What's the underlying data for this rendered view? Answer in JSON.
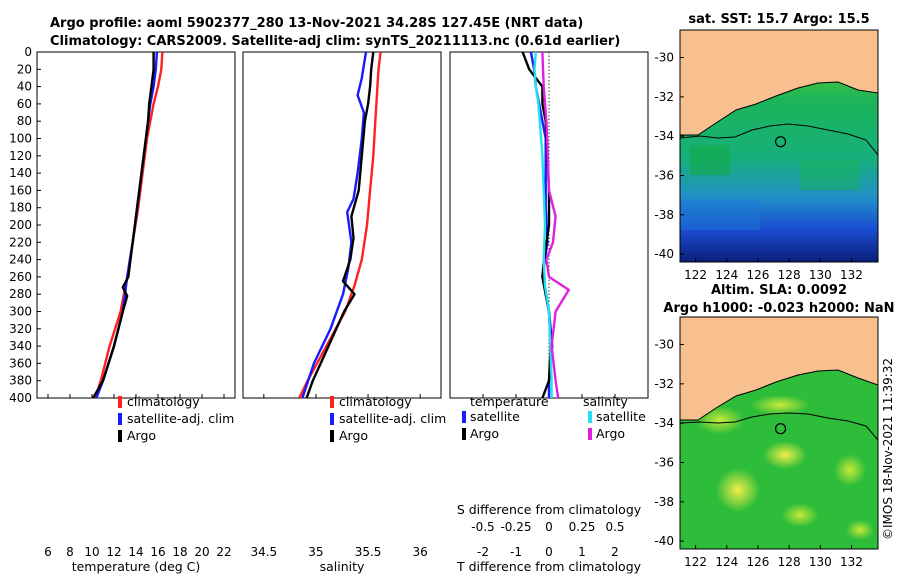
{
  "title_line1": "Argo profile: aoml 5902377_280 13-Nov-2021 34.28S 127.45E (NRT data)",
  "title_line2": "Climatology: CARS2009. Satellite-adj clim: synTS_20211113.nc (0.61d earlier)",
  "watermark": "©IMOS 18-Nov-2021 11:39:32",
  "colors": {
    "climatology": "#ff2020",
    "satellite": "#1a1aff",
    "argo": "#000000",
    "sal_satellite": "#22e0f0",
    "sal_argo": "#e020e0",
    "land": "#f7c08e"
  },
  "chart_data": [
    {
      "id": "temperature",
      "type": "line",
      "xlabel": "temperature (deg C)",
      "ylabel": "",
      "xlim": [
        5,
        23
      ],
      "ylim": [
        400,
        0
      ],
      "xticks": [
        6,
        8,
        10,
        12,
        14,
        16,
        18,
        20,
        22
      ],
      "yticks": [
        0,
        20,
        40,
        60,
        80,
        100,
        120,
        140,
        160,
        180,
        200,
        220,
        240,
        260,
        280,
        300,
        320,
        340,
        360,
        380,
        400
      ],
      "series": [
        {
          "name": "climatology",
          "color": "#ff2020",
          "points": [
            [
              16.4,
              0
            ],
            [
              16.3,
              20
            ],
            [
              16.0,
              40
            ],
            [
              15.6,
              60
            ],
            [
              15.3,
              80
            ],
            [
              15.0,
              100
            ],
            [
              14.6,
              140
            ],
            [
              14.2,
              180
            ],
            [
              13.7,
              220
            ],
            [
              13.2,
              260
            ],
            [
              12.6,
              300
            ],
            [
              11.6,
              340
            ],
            [
              10.8,
              380
            ],
            [
              10.3,
              400
            ]
          ]
        },
        {
          "name": "satellite-adj. clim",
          "color": "#1a1aff",
          "points": [
            [
              15.9,
              0
            ],
            [
              15.8,
              20
            ],
            [
              15.6,
              40
            ],
            [
              15.3,
              60
            ],
            [
              15.1,
              80
            ],
            [
              14.9,
              100
            ],
            [
              14.5,
              140
            ],
            [
              14.1,
              180
            ],
            [
              13.7,
              220
            ],
            [
              13.2,
              260
            ],
            [
              12.8,
              300
            ],
            [
              12.0,
              340
            ],
            [
              11.0,
              380
            ],
            [
              10.4,
              400
            ]
          ]
        },
        {
          "name": "Argo",
          "color": "#000000",
          "points": [
            [
              15.6,
              0
            ],
            [
              15.6,
              20
            ],
            [
              15.4,
              40
            ],
            [
              15.2,
              60
            ],
            [
              15.1,
              80
            ],
            [
              14.9,
              100
            ],
            [
              14.5,
              140
            ],
            [
              14.1,
              180
            ],
            [
              13.7,
              220
            ],
            [
              13.3,
              260
            ],
            [
              12.8,
              272
            ],
            [
              13.2,
              282
            ],
            [
              12.8,
              300
            ],
            [
              12.0,
              340
            ],
            [
              11.0,
              380
            ],
            [
              10.1,
              400
            ]
          ]
        }
      ]
    },
    {
      "id": "salinity",
      "type": "line",
      "xlabel": "salinity",
      "ylabel": "",
      "xlim": [
        34.3,
        36.2
      ],
      "ylim": [
        400,
        0
      ],
      "xticks": [
        34.5,
        35,
        35.5,
        36
      ],
      "xtick_labels": [
        "34.5",
        "35",
        "35.5",
        "36"
      ],
      "series": [
        {
          "name": "climatology",
          "color": "#ff2020",
          "points": [
            [
              35.62,
              0
            ],
            [
              35.6,
              20
            ],
            [
              35.59,
              40
            ],
            [
              35.58,
              60
            ],
            [
              35.57,
              80
            ],
            [
              35.55,
              120
            ],
            [
              35.52,
              160
            ],
            [
              35.49,
              200
            ],
            [
              35.44,
              240
            ],
            [
              35.37,
              270
            ],
            [
              35.28,
              300
            ],
            [
              35.1,
              340
            ],
            [
              34.92,
              380
            ],
            [
              34.84,
              400
            ]
          ]
        },
        {
          "name": "satellite-adj. clim",
          "color": "#1a1aff",
          "points": [
            [
              35.48,
              0
            ],
            [
              35.44,
              30
            ],
            [
              35.4,
              50
            ],
            [
              35.46,
              70
            ],
            [
              35.44,
              100
            ],
            [
              35.4,
              140
            ],
            [
              35.36,
              170
            ],
            [
              35.3,
              185
            ],
            [
              35.34,
              220
            ],
            [
              35.31,
              250
            ],
            [
              35.26,
              280
            ],
            [
              35.14,
              320
            ],
            [
              34.98,
              360
            ],
            [
              34.87,
              400
            ]
          ]
        },
        {
          "name": "Argo",
          "color": "#000000",
          "points": [
            [
              35.55,
              0
            ],
            [
              35.53,
              20
            ],
            [
              35.52,
              40
            ],
            [
              35.5,
              60
            ],
            [
              35.47,
              80
            ],
            [
              35.44,
              120
            ],
            [
              35.41,
              160
            ],
            [
              35.34,
              190
            ],
            [
              35.36,
              215
            ],
            [
              35.33,
              240
            ],
            [
              35.26,
              265
            ],
            [
              35.37,
              280
            ],
            [
              35.27,
              300
            ],
            [
              35.12,
              340
            ],
            [
              34.97,
              380
            ],
            [
              34.91,
              400
            ]
          ]
        }
      ]
    },
    {
      "id": "difference",
      "type": "line",
      "xlabel": "T difference from climatology",
      "x2label": "S difference from climatology",
      "xlim": [
        -3,
        3
      ],
      "ylim": [
        400,
        0
      ],
      "xticks": [
        -2,
        -1,
        0,
        1,
        2
      ],
      "xtick_labels": [
        "-2",
        "-1",
        "0",
        "1",
        "2"
      ],
      "x2ticks": [
        -0.5,
        -0.25,
        0,
        0.25,
        0.5
      ],
      "x2tick_labels": [
        "-0.5",
        "-0.25",
        "0",
        "0.25",
        "0.5"
      ],
      "x2lim": [
        -0.75,
        0.75
      ],
      "series": [
        {
          "name": "temperature satellite",
          "axis": "T",
          "color": "#1a1aff",
          "points": [
            [
              -0.55,
              0
            ],
            [
              -0.45,
              20
            ],
            [
              -0.4,
              40
            ],
            [
              -0.3,
              60
            ],
            [
              -0.2,
              80
            ],
            [
              -0.1,
              100
            ],
            [
              -0.1,
              140
            ],
            [
              -0.1,
              180
            ],
            [
              -0.05,
              220
            ],
            [
              -0.2,
              260
            ],
            [
              0.0,
              300
            ],
            [
              0.1,
              340
            ],
            [
              0.0,
              380
            ],
            [
              0.0,
              400
            ]
          ]
        },
        {
          "name": "temperature Argo",
          "axis": "T",
          "color": "#000000",
          "points": [
            [
              -0.8,
              0
            ],
            [
              -0.6,
              20
            ],
            [
              -0.2,
              40
            ],
            [
              -0.2,
              60
            ],
            [
              -0.1,
              80
            ],
            [
              -0.05,
              120
            ],
            [
              0.0,
              160
            ],
            [
              0.0,
              200
            ],
            [
              -0.15,
              240
            ],
            [
              -0.2,
              260
            ],
            [
              0.0,
              300
            ],
            [
              0.05,
              340
            ],
            [
              0.0,
              380
            ],
            [
              -0.2,
              400
            ]
          ]
        },
        {
          "name": "salinity satellite",
          "axis": "S",
          "color": "#22e0f0",
          "points": [
            [
              -0.1,
              0
            ],
            [
              -0.11,
              20
            ],
            [
              -0.1,
              40
            ],
            [
              -0.08,
              60
            ],
            [
              -0.07,
              80
            ],
            [
              -0.05,
              120
            ],
            [
              -0.04,
              160
            ],
            [
              -0.03,
              200
            ],
            [
              -0.04,
              240
            ],
            [
              -0.03,
              270
            ],
            [
              0.0,
              300
            ],
            [
              0.01,
              340
            ],
            [
              0.02,
              380
            ],
            [
              0.02,
              400
            ]
          ]
        },
        {
          "name": "salinity Argo",
          "axis": "S",
          "color": "#e020e0",
          "points": [
            [
              -0.05,
              0
            ],
            [
              -0.04,
              40
            ],
            [
              -0.03,
              60
            ],
            [
              -0.02,
              80
            ],
            [
              -0.01,
              120
            ],
            [
              0.0,
              160
            ],
            [
              0.05,
              190
            ],
            [
              0.03,
              220
            ],
            [
              -0.02,
              240
            ],
            [
              0.0,
              260
            ],
            [
              0.15,
              275
            ],
            [
              0.05,
              300
            ],
            [
              0.02,
              340
            ],
            [
              0.05,
              380
            ],
            [
              0.07,
              400
            ]
          ]
        }
      ]
    }
  ],
  "legend_tp": {
    "climatology": "climatology",
    "satellite": "satellite-adj. clim",
    "argo": "Argo"
  },
  "legend_diff": {
    "t_head": "temperature",
    "s_head": "salinity",
    "satellite": "satellite",
    "argo": "Argo"
  },
  "maps": [
    {
      "id": "sst-map",
      "title": "sat. SST: 15.7 Argo: 15.5",
      "xticks": [
        122,
        124,
        126,
        128,
        130,
        132
      ],
      "xtick_labels": [
        "122",
        "124",
        "126",
        "128",
        "130",
        "132"
      ],
      "yticks": [
        -30,
        -32,
        -34,
        -36,
        -38,
        -40
      ],
      "ytick_labels": [
        "-30",
        "-32",
        "-34",
        "-36",
        "-38",
        "-40"
      ],
      "xlim": [
        121,
        133.7
      ],
      "ylim": [
        -40.4,
        -28.6
      ],
      "argo_lon": 127.45,
      "argo_lat": -34.28
    },
    {
      "id": "sla-map",
      "title": "Altim. SLA: 0.0092",
      "subtitle": "Argo h1000: -0.023 h2000: NaN",
      "xticks": [
        122,
        124,
        126,
        128,
        130,
        132
      ],
      "xtick_labels": [
        "122",
        "124",
        "126",
        "128",
        "130",
        "132"
      ],
      "yticks": [
        -30,
        -32,
        -34,
        -36,
        -38,
        -40
      ],
      "ytick_labels": [
        "-30",
        "-32",
        "-34",
        "-36",
        "-38",
        "-40"
      ],
      "xlim": [
        121,
        133.7
      ],
      "ylim": [
        -40.4,
        -28.6
      ],
      "argo_lon": 127.45,
      "argo_lat": -34.28
    }
  ]
}
